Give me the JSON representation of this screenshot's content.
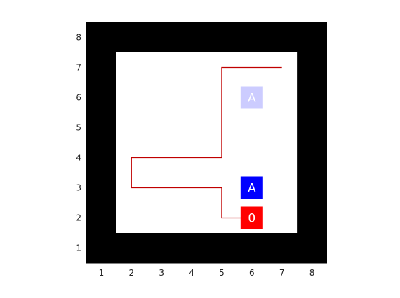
{
  "grid": {
    "x_ticks": [
      "1",
      "2",
      "3",
      "4",
      "5",
      "6",
      "7",
      "8"
    ],
    "y_ticks": [
      "1",
      "2",
      "3",
      "4",
      "5",
      "6",
      "7",
      "8"
    ],
    "xlim": [
      0.5,
      8.5
    ],
    "ylim": [
      0.5,
      8.5
    ],
    "outer_color": "#000000",
    "inner_color": "#ffffff",
    "inner_region": {
      "x_from": 1.5,
      "x_to": 7.5,
      "y_from": 1.5,
      "y_to": 7.5
    }
  },
  "path": {
    "color": "#c00000",
    "points": [
      [
        6,
        2
      ],
      [
        5,
        2
      ],
      [
        5,
        3
      ],
      [
        2,
        3
      ],
      [
        2,
        4
      ],
      [
        5,
        4
      ],
      [
        5,
        7
      ],
      [
        7,
        7
      ]
    ]
  },
  "tiles": [
    {
      "label": "A",
      "x": 6,
      "y": 6,
      "color": "#ccccff",
      "kind": "goal-ghost"
    },
    {
      "label": "A",
      "x": 6,
      "y": 3,
      "color": "#0000ff",
      "kind": "goal"
    },
    {
      "label": "0",
      "x": 6,
      "y": 2,
      "color": "#ff0000",
      "kind": "agent"
    }
  ]
}
